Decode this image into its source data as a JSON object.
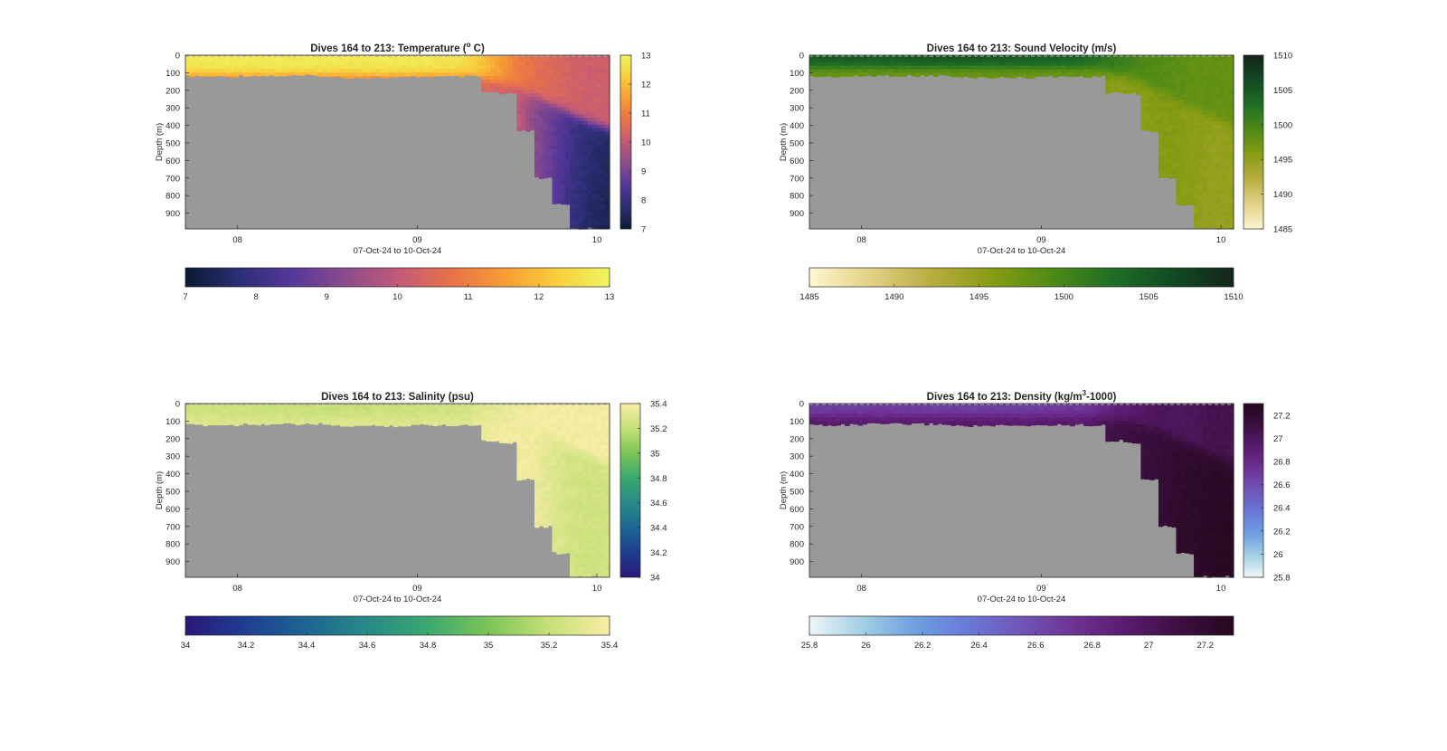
{
  "figure": {
    "background": "#ffffff",
    "land_color": "#999999"
  },
  "chart_data": [
    {
      "type": "heatmap",
      "id": "temperature",
      "title_main": "Dives 164 to 213: Temperature (",
      "title_sup": "o",
      "title_tail": " C)",
      "xlabel": "07-Oct-24 to 10-Oct-24",
      "ylabel": "Depth (m)",
      "xticks": [
        "08",
        "09",
        "10"
      ],
      "xlim_days": [
        7.71,
        10.07
      ],
      "yticks": [
        "0",
        "100",
        "200",
        "300",
        "400",
        "500",
        "600",
        "700",
        "800",
        "900"
      ],
      "ylim": [
        0,
        990
      ],
      "clim": [
        7,
        13
      ],
      "cticks": [
        "7",
        "8",
        "9",
        "10",
        "11",
        "12",
        "13"
      ],
      "colormap": [
        "#0a1a33",
        "#2b2e73",
        "#54379a",
        "#8b4b8c",
        "#c25a78",
        "#e8714a",
        "#f79c34",
        "#f8ce3c",
        "#eef560"
      ],
      "profile_days": [
        7.72,
        8.0,
        8.5,
        8.96,
        9.25,
        9.35,
        9.45,
        9.55,
        9.65,
        9.75,
        9.85,
        9.95,
        10.06
      ],
      "surface_value": [
        12.8,
        12.8,
        12.8,
        12.8,
        12.6,
        12.2,
        11.6,
        11.0,
        10.7,
        10.5,
        10.3,
        10.2,
        10.2
      ],
      "deep_value": [
        11.0,
        11.0,
        11.0,
        11.0,
        11.0,
        10.4,
        10.3,
        10.1,
        9.3,
        8.8,
        8.2,
        7.8,
        7.6
      ],
      "thermocline_depth": [
        110,
        110,
        110,
        110,
        110,
        130,
        150,
        180,
        230,
        280,
        330,
        380,
        420
      ],
      "bottom_depth": [
        120,
        115,
        125,
        120,
        120,
        210,
        220,
        430,
        700,
        850,
        985,
        985,
        985
      ]
    },
    {
      "type": "heatmap",
      "id": "sound_velocity",
      "title_main": "Dives 164 to 213: Sound Velocity (m/s)",
      "title_sup": "",
      "title_tail": "",
      "xlabel": "07-Oct-24 to 10-Oct-24",
      "ylabel": "Depth (m)",
      "xticks": [
        "08",
        "09",
        "10"
      ],
      "xlim_days": [
        7.71,
        10.07
      ],
      "yticks": [
        "0",
        "100",
        "200",
        "300",
        "400",
        "500",
        "600",
        "700",
        "800",
        "900"
      ],
      "ylim": [
        0,
        990
      ],
      "clim": [
        1485,
        1510
      ],
      "cticks": [
        "1485",
        "1490",
        "1495",
        "1500",
        "1505",
        "1510"
      ],
      "colormap": [
        "#fdf7d1",
        "#e3d187",
        "#b9ad40",
        "#889c14",
        "#4f8a16",
        "#1f6f25",
        "#124a24",
        "#15241a"
      ],
      "profile_days": [
        7.72,
        8.0,
        8.5,
        8.96,
        9.25,
        9.35,
        9.45,
        9.55,
        9.65,
        9.75,
        9.85,
        9.95,
        10.06
      ],
      "surface_value": [
        1505,
        1505,
        1505.5,
        1505,
        1504,
        1502,
        1501,
        1499.5,
        1499,
        1498.5,
        1498,
        1498,
        1498
      ],
      "deep_value": [
        1497,
        1497,
        1497,
        1497,
        1497,
        1496,
        1495.5,
        1495.5,
        1496,
        1496,
        1495.5,
        1495,
        1495
      ],
      "thermocline_depth": [
        70,
        70,
        70,
        70,
        70,
        90,
        110,
        150,
        200,
        250,
        300,
        350,
        400
      ],
      "bottom_depth": [
        120,
        115,
        125,
        120,
        120,
        210,
        220,
        430,
        700,
        850,
        985,
        985,
        985
      ]
    },
    {
      "type": "heatmap",
      "id": "salinity",
      "title_main": "Dives 164 to 213: Salinity (psu)",
      "title_sup": "",
      "title_tail": "",
      "xlabel": "07-Oct-24 to 10-Oct-24",
      "ylabel": "Depth (m)",
      "xticks": [
        "08",
        "09",
        "10"
      ],
      "xlim_days": [
        7.71,
        10.07
      ],
      "yticks": [
        "0",
        "100",
        "200",
        "300",
        "400",
        "500",
        "600",
        "700",
        "800",
        "900"
      ],
      "ylim": [
        0,
        990
      ],
      "clim": [
        34,
        35.4
      ],
      "cticks": [
        "34",
        "34.2",
        "34.4",
        "34.6",
        "34.8",
        "35",
        "35.2",
        "35.4"
      ],
      "colormap": [
        "#29187a",
        "#1f3f91",
        "#1c6692",
        "#288a88",
        "#3aa86f",
        "#7cc457",
        "#c6e077",
        "#f8eda6"
      ],
      "profile_days": [
        7.72,
        8.0,
        8.5,
        8.96,
        9.25,
        9.35,
        9.45,
        9.55,
        9.65,
        9.75,
        9.85,
        9.95,
        10.06
      ],
      "surface_value": [
        35.22,
        35.22,
        35.2,
        35.22,
        35.24,
        35.3,
        35.33,
        35.36,
        35.38,
        35.38,
        35.38,
        35.38,
        35.38
      ],
      "deep_value": [
        35.3,
        35.3,
        35.3,
        35.3,
        35.3,
        35.35,
        35.37,
        35.38,
        35.36,
        35.3,
        35.26,
        35.24,
        35.25
      ],
      "thermocline_depth": [
        80,
        80,
        80,
        80,
        80,
        90,
        100,
        120,
        150,
        200,
        250,
        300,
        350
      ],
      "bottom_depth": [
        120,
        115,
        125,
        120,
        120,
        210,
        220,
        430,
        700,
        850,
        985,
        985,
        985
      ]
    },
    {
      "type": "heatmap",
      "id": "density",
      "title_main": "Dives 164 to 213: Density (kg/m",
      "title_sup": "3",
      "title_tail": "-1000)",
      "xlabel": "07-Oct-24 to 10-Oct-24",
      "ylabel": "Depth (m)",
      "xticks": [
        "08",
        "09",
        "10"
      ],
      "xlim_days": [
        7.71,
        10.07
      ],
      "yticks": [
        "0",
        "100",
        "200",
        "300",
        "400",
        "500",
        "600",
        "700",
        "800",
        "900"
      ],
      "ylim": [
        0,
        990
      ],
      "clim": [
        25.8,
        27.3
      ],
      "cticks": [
        "25.8",
        "26",
        "26.2",
        "26.4",
        "26.6",
        "26.8",
        "27",
        "27.2"
      ],
      "colormap": [
        "#eef6f6",
        "#a3cfe4",
        "#6d9fe0",
        "#6a78d8",
        "#7055b6",
        "#6d3292",
        "#5a1a6e",
        "#3b0f3f",
        "#26081e"
      ],
      "profile_days": [
        7.72,
        8.0,
        8.5,
        8.96,
        9.25,
        9.35,
        9.45,
        9.55,
        9.65,
        9.75,
        9.85,
        9.95,
        10.06
      ],
      "surface_value": [
        26.65,
        26.65,
        26.65,
        26.65,
        26.7,
        26.8,
        26.9,
        26.95,
        27.0,
        27.0,
        27.0,
        27.05,
        27.05
      ],
      "deep_value": [
        26.95,
        26.95,
        26.95,
        26.95,
        26.95,
        27.05,
        27.1,
        27.12,
        27.15,
        27.2,
        27.22,
        27.25,
        27.26
      ],
      "thermocline_depth": [
        70,
        70,
        70,
        70,
        70,
        80,
        90,
        110,
        150,
        200,
        250,
        300,
        350
      ],
      "bottom_depth": [
        120,
        115,
        125,
        120,
        120,
        210,
        220,
        430,
        700,
        850,
        985,
        985,
        985
      ]
    }
  ]
}
